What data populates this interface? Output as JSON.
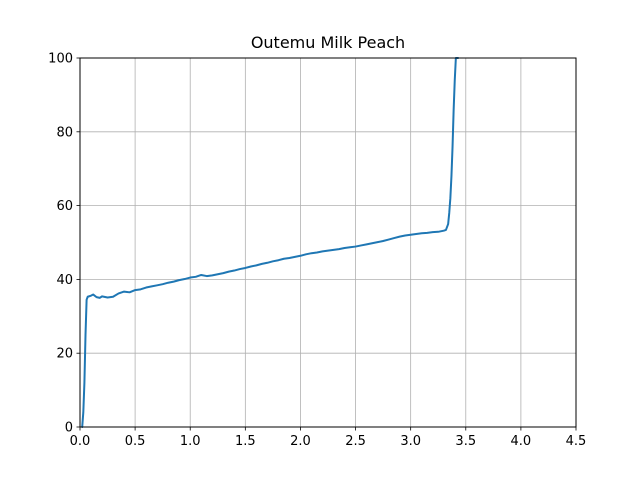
{
  "chart_data": {
    "type": "line",
    "title": "Outemu Milk Peach",
    "xlabel": "",
    "ylabel": "",
    "xlim": [
      0.0,
      4.5
    ],
    "ylim": [
      0,
      100
    ],
    "grid": true,
    "x_ticks": [
      "0.0",
      "0.5",
      "1.0",
      "1.5",
      "2.0",
      "2.5",
      "3.0",
      "3.5",
      "4.0",
      "4.5"
    ],
    "y_ticks": [
      "0",
      "20",
      "40",
      "60",
      "80",
      "100"
    ],
    "series": [
      {
        "color": "#1f77b4",
        "x": [
          0.02,
          0.03,
          0.04,
          0.05,
          0.06,
          0.07,
          0.1,
          0.12,
          0.15,
          0.18,
          0.2,
          0.25,
          0.3,
          0.35,
          0.4,
          0.45,
          0.5,
          0.55,
          0.6,
          0.65,
          0.7,
          0.75,
          0.8,
          0.85,
          0.9,
          0.95,
          1.0,
          1.05,
          1.1,
          1.15,
          1.2,
          1.25,
          1.3,
          1.35,
          1.4,
          1.45,
          1.5,
          1.55,
          1.6,
          1.65,
          1.7,
          1.75,
          1.8,
          1.85,
          1.9,
          1.95,
          2.0,
          2.05,
          2.1,
          2.15,
          2.2,
          2.25,
          2.3,
          2.35,
          2.4,
          2.45,
          2.5,
          2.55,
          2.6,
          2.65,
          2.7,
          2.75,
          2.8,
          2.85,
          2.9,
          2.95,
          3.0,
          3.05,
          3.1,
          3.15,
          3.2,
          3.25,
          3.3,
          3.32,
          3.34,
          3.35,
          3.36,
          3.37,
          3.38,
          3.39,
          3.4,
          3.41,
          3.42,
          3.43
        ],
        "y": [
          0,
          4,
          12,
          25,
          34.5,
          35.3,
          35.6,
          35.9,
          35.2,
          35.0,
          35.4,
          35.1,
          35.3,
          36.2,
          36.7,
          36.5,
          37.1,
          37.3,
          37.8,
          38.1,
          38.4,
          38.7,
          39.1,
          39.4,
          39.8,
          40.1,
          40.5,
          40.7,
          41.2,
          40.9,
          41.1,
          41.4,
          41.7,
          42.1,
          42.4,
          42.8,
          43.1,
          43.5,
          43.8,
          44.2,
          44.5,
          44.9,
          45.2,
          45.6,
          45.8,
          46.1,
          46.4,
          46.8,
          47.1,
          47.3,
          47.6,
          47.8,
          48.0,
          48.2,
          48.5,
          48.7,
          48.9,
          49.2,
          49.5,
          49.8,
          50.1,
          50.4,
          50.8,
          51.2,
          51.6,
          51.9,
          52.1,
          52.3,
          52.5,
          52.6,
          52.8,
          52.9,
          53.2,
          53.4,
          55,
          58,
          62,
          68,
          76,
          86,
          94,
          100,
          100,
          100
        ]
      }
    ]
  }
}
